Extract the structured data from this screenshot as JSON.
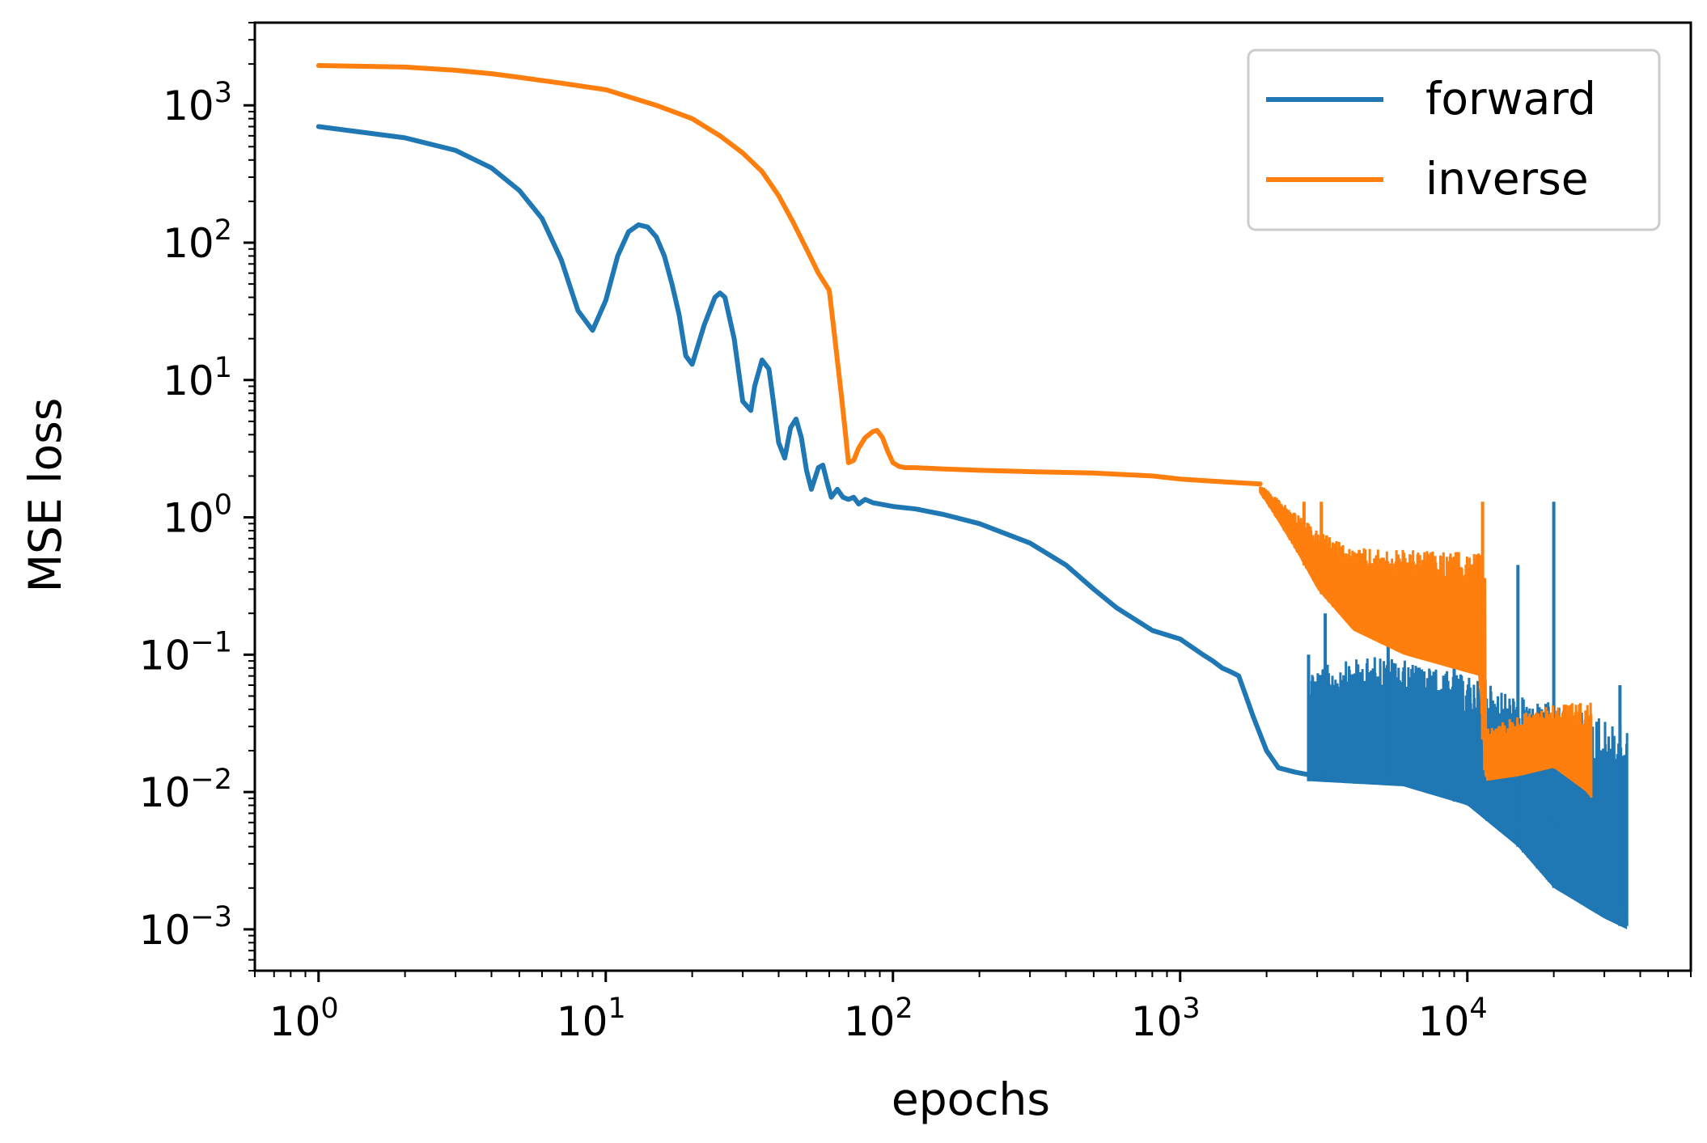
{
  "chart_data": {
    "type": "line",
    "title": "",
    "xlabel": "epochs",
    "ylabel": "MSE loss",
    "xscale": "log",
    "yscale": "log",
    "xlim": [
      0.6,
      60000
    ],
    "ylim": [
      0.0005,
      4000
    ],
    "grid": false,
    "legend_position": "top-right",
    "x_ticks": [
      {
        "base": "10",
        "exp": "0",
        "value": 1
      },
      {
        "base": "10",
        "exp": "1",
        "value": 10
      },
      {
        "base": "10",
        "exp": "2",
        "value": 100
      },
      {
        "base": "10",
        "exp": "3",
        "value": 1000
      },
      {
        "base": "10",
        "exp": "4",
        "value": 10000
      }
    ],
    "y_ticks": [
      {
        "base": "10",
        "exp": "3",
        "value": 1000
      },
      {
        "base": "10",
        "exp": "2",
        "value": 100
      },
      {
        "base": "10",
        "exp": "1",
        "value": 10
      },
      {
        "base": "10",
        "exp": "0",
        "value": 1
      },
      {
        "base": "10",
        "exp": "−1",
        "value": 0.1
      },
      {
        "base": "10",
        "exp": "−2",
        "value": 0.01
      },
      {
        "base": "10",
        "exp": "−3",
        "value": 0.001
      }
    ],
    "series": [
      {
        "name": "forward",
        "color": "#1f77b4",
        "x": [
          1,
          2,
          3,
          4,
          5,
          6,
          7,
          8,
          9,
          10,
          11,
          12,
          13,
          14,
          15,
          16,
          17,
          18,
          19,
          20,
          22,
          24,
          25,
          26,
          28,
          30,
          32,
          33,
          35,
          37,
          38,
          40,
          42,
          44,
          46,
          48,
          50,
          52,
          55,
          57,
          59,
          61,
          64,
          67,
          70,
          73,
          76,
          80,
          85,
          90,
          100,
          120,
          150,
          200,
          300,
          400,
          500,
          600,
          800,
          1000,
          1200,
          1300,
          1400,
          1500,
          1600,
          1800,
          2000,
          2200,
          2500,
          3000,
          4000,
          5000,
          6000,
          7000,
          8000,
          10000,
          12000,
          15000,
          20000,
          25000,
          30000,
          35000
        ],
        "y": [
          700,
          580,
          470,
          350,
          240,
          150,
          75,
          32,
          23,
          38,
          80,
          120,
          135,
          130,
          110,
          80,
          50,
          30,
          15,
          13,
          25,
          40,
          43,
          40,
          20,
          7,
          6,
          9,
          14,
          12,
          8,
          3.5,
          2.7,
          4.5,
          5.2,
          3.8,
          2.2,
          1.6,
          2.3,
          2.4,
          1.8,
          1.4,
          1.6,
          1.4,
          1.35,
          1.4,
          1.25,
          1.35,
          1.28,
          1.25,
          1.2,
          1.15,
          1.05,
          0.9,
          0.65,
          0.45,
          0.3,
          0.22,
          0.15,
          0.13,
          0.1,
          0.09,
          0.08,
          0.075,
          0.07,
          0.035,
          0.02,
          0.015,
          0.014,
          0.013,
          0.012,
          0.012,
          0.012,
          0.011,
          0.01,
          0.0095,
          0.0085,
          0.006,
          0.004,
          0.003,
          0.002,
          0.0012
        ],
        "noise_band": {
          "x_start": 2800,
          "x_end": 36000,
          "lower": [
            [
              2800,
              0.012
            ],
            [
              6000,
              0.011
            ],
            [
              10000,
              0.008
            ],
            [
              15000,
              0.004
            ],
            [
              20000,
              0.002
            ],
            [
              30000,
              0.0012
            ],
            [
              36000,
              0.001
            ]
          ],
          "upper": [
            [
              2800,
              0.08
            ],
            [
              5000,
              0.1
            ],
            [
              10000,
              0.07
            ],
            [
              15000,
              0.05
            ],
            [
              25000,
              0.04
            ],
            [
              36000,
              0.03
            ]
          ],
          "spikes": [
            [
              2800,
              0.1
            ],
            [
              3200,
              0.2
            ],
            [
              5300,
              0.3
            ],
            [
              9000,
              0.3
            ],
            [
              15000,
              0.45
            ],
            [
              20000,
              1.3
            ],
            [
              34000,
              0.06
            ]
          ]
        }
      },
      {
        "name": "inverse",
        "color": "#ff7f0e",
        "x": [
          1,
          2,
          3,
          4,
          5,
          7,
          10,
          15,
          20,
          25,
          30,
          35,
          40,
          45,
          50,
          55,
          60,
          62,
          64,
          66,
          68,
          70,
          73,
          76,
          80,
          85,
          88,
          92,
          96,
          100,
          105,
          110,
          120,
          150,
          200,
          300,
          500,
          800,
          1000,
          1500,
          1900
        ],
        "y": [
          1950,
          1900,
          1800,
          1700,
          1600,
          1450,
          1300,
          1000,
          800,
          600,
          450,
          330,
          220,
          140,
          90,
          60,
          45,
          25,
          14,
          8,
          4.5,
          2.5,
          2.6,
          3.2,
          3.8,
          4.2,
          4.3,
          3.8,
          3.0,
          2.5,
          2.35,
          2.3,
          2.3,
          2.25,
          2.2,
          2.15,
          2.1,
          2.0,
          1.9,
          1.8,
          1.75
        ],
        "noise_band": {
          "x_start": 1900,
          "x_end": 27000,
          "lower": [
            [
              1900,
              1.5
            ],
            [
              2500,
              0.6
            ],
            [
              3000,
              0.3
            ],
            [
              4000,
              0.15
            ],
            [
              6000,
              0.1
            ],
            [
              11000,
              0.07
            ],
            [
              11500,
              0.012
            ],
            [
              15000,
              0.013
            ],
            [
              20000,
              0.015
            ],
            [
              26000,
              0.01
            ],
            [
              27000,
              0.009
            ]
          ],
          "upper": [
            [
              1900,
              1.75
            ],
            [
              3000,
              0.8
            ],
            [
              4000,
              0.6
            ],
            [
              11500,
              0.55
            ],
            [
              11600,
              0.03
            ],
            [
              20000,
              0.045
            ],
            [
              27000,
              0.045
            ]
          ],
          "spikes": [
            [
              11300,
              1.3
            ],
            [
              2700,
              1.3
            ],
            [
              3100,
              1.3
            ]
          ]
        }
      }
    ]
  }
}
